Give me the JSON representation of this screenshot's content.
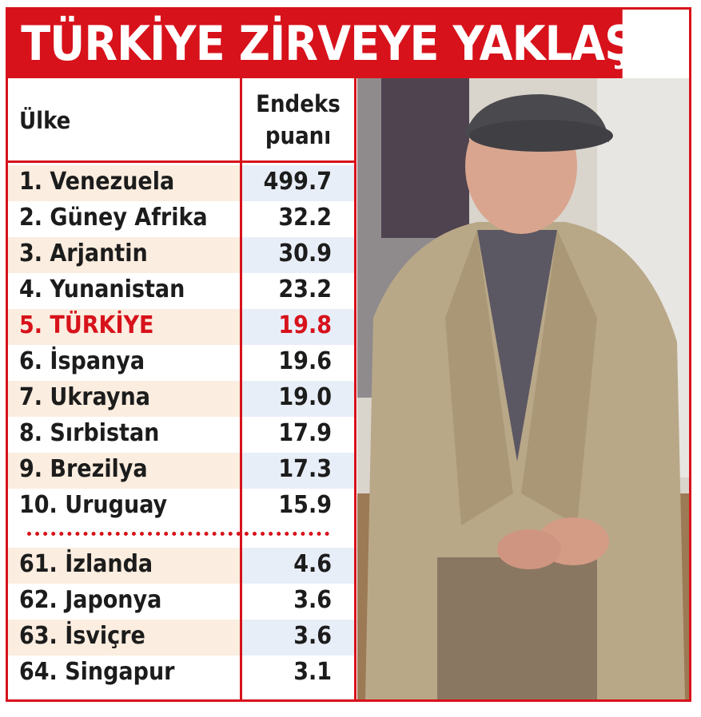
{
  "title": "TÜRKİYE ZİRVEYE YAKLAŞTI",
  "chart_data": {
    "type": "table",
    "columns": [
      "Ülke",
      "Endeks puanı"
    ],
    "column_header_lines": [
      "Endeks",
      "puanı"
    ],
    "rows": [
      {
        "rank_label": "1. Venezuela",
        "value": "499.7"
      },
      {
        "rank_label": "2. Güney Afrika",
        "value": "32.2"
      },
      {
        "rank_label": "3. Arjantin",
        "value": "30.9"
      },
      {
        "rank_label": "4. Yunanistan",
        "value": "23.2"
      },
      {
        "rank_label": "5. TÜRKİYE",
        "value": "19.8",
        "highlight": true
      },
      {
        "rank_label": "6. İspanya",
        "value": "19.6"
      },
      {
        "rank_label": "7. Ukrayna",
        "value": "19.0"
      },
      {
        "rank_label": "8. Sırbistan",
        "value": "17.9"
      },
      {
        "rank_label": "9. Brezilya",
        "value": "17.3"
      },
      {
        "rank_label": "10. Uruguay",
        "value": "15.9"
      },
      {
        "rank_label": "61. İzlanda",
        "value": "4.6"
      },
      {
        "rank_label": "62. Japonya",
        "value": "3.6"
      },
      {
        "rank_label": "63. İsviçre",
        "value": "3.6"
      },
      {
        "rank_label": "64. Singapur",
        "value": "3.1"
      }
    ]
  },
  "colors": {
    "accent": "#d7121b",
    "row_shade_country": "#fbeddf",
    "row_shade_value": "#e8eef8",
    "text": "#1c1c1c"
  },
  "photo": {
    "subject": "elderly-man-photo"
  }
}
